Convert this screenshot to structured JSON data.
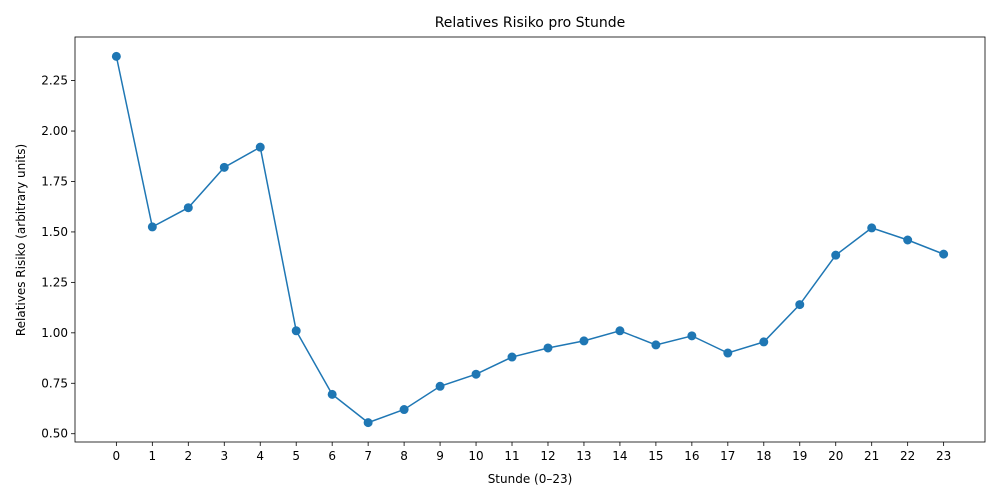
{
  "chart_data": {
    "type": "line",
    "title": "Relatives Risiko pro Stunde",
    "xlabel": "Stunde (0–23)",
    "ylabel": "Relatives Risiko (arbitrary units)",
    "x": [
      0,
      1,
      2,
      3,
      4,
      5,
      6,
      7,
      8,
      9,
      10,
      11,
      12,
      13,
      14,
      15,
      16,
      17,
      18,
      19,
      20,
      21,
      22,
      23
    ],
    "x_tick_labels": [
      "0",
      "1",
      "2",
      "3",
      "4",
      "5",
      "6",
      "7",
      "8",
      "9",
      "10",
      "11",
      "12",
      "13",
      "14",
      "15",
      "16",
      "17",
      "18",
      "19",
      "20",
      "21",
      "22",
      "23"
    ],
    "series": [
      {
        "values": [
          2.37,
          1.525,
          1.62,
          1.82,
          1.92,
          1.01,
          0.695,
          0.555,
          0.62,
          0.735,
          0.795,
          0.88,
          0.925,
          0.96,
          1.01,
          0.94,
          0.985,
          0.9,
          0.955,
          1.14,
          1.385,
          1.52,
          1.46,
          1.39
        ],
        "color": "#1f77b4",
        "marker": "circle"
      }
    ],
    "y_ticks": [
      0.5,
      0.75,
      1.0,
      1.25,
      1.5,
      1.75,
      2.0,
      2.25
    ],
    "y_tick_labels": [
      "0.50",
      "0.75",
      "1.00",
      "1.25",
      "1.50",
      "1.75",
      "2.00",
      "2.25"
    ],
    "xlim": [
      -1.15,
      24.15
    ],
    "ylim": [
      0.459,
      2.466
    ],
    "grid": false,
    "legend": "none"
  }
}
